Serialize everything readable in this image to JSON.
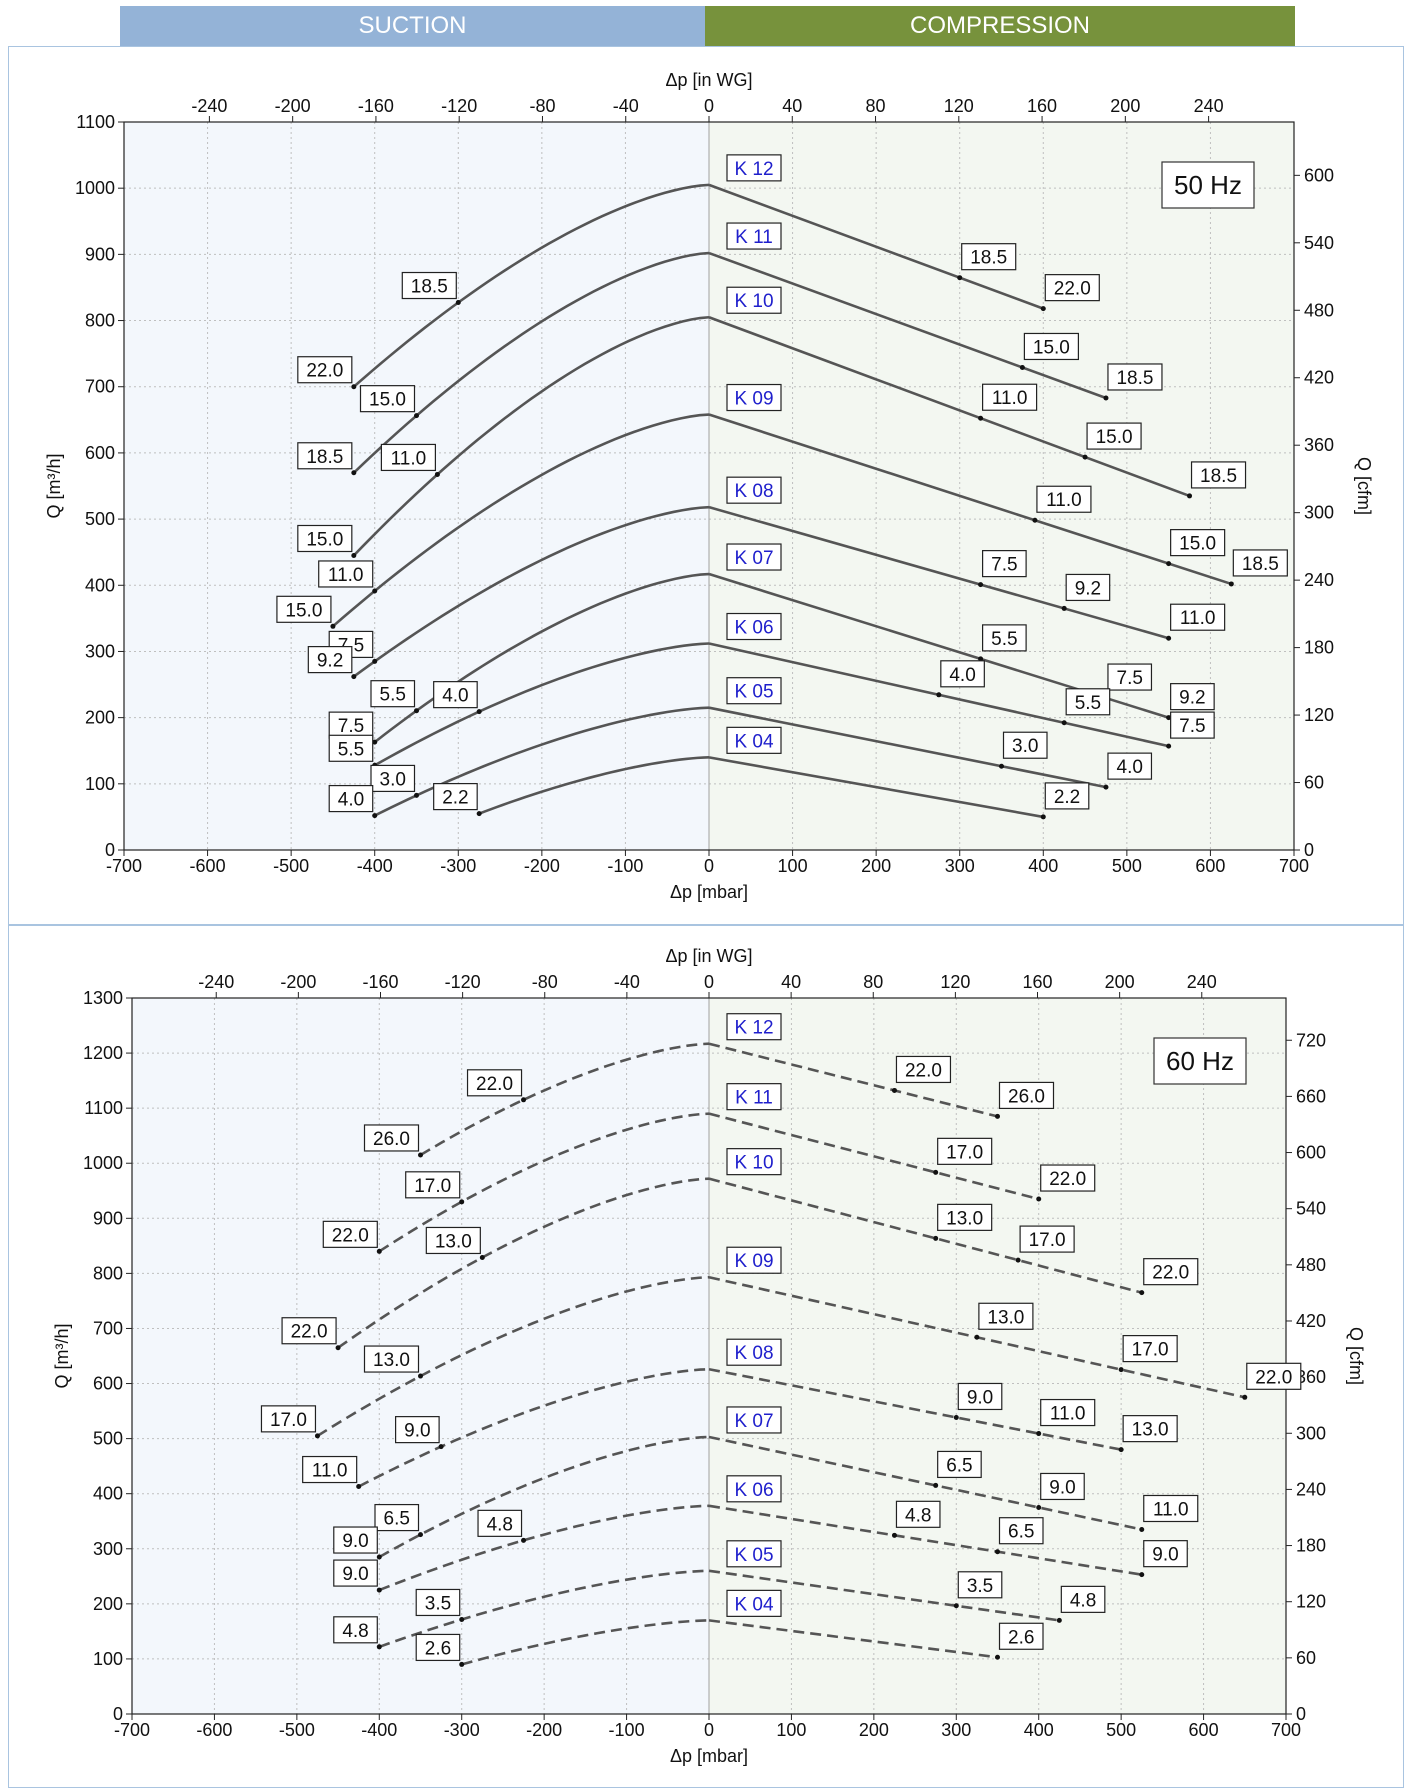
{
  "header": {
    "suction_label": "SUCTION",
    "compression_label": "COMPRESSION"
  },
  "colors": {
    "suction_bg": "#94b3d7",
    "compression_bg": "#77923c",
    "curve": "#555555",
    "curve_label": "#1f1fcc",
    "suction_area": "#f3f7fc",
    "compression_area": "#f3f7f1"
  },
  "chart_data": [
    {
      "type": "line",
      "title": "50 Hz",
      "xlabel": "Δp [mbar]",
      "x2label": "Δp [in WG]",
      "ylabel": "Q [m³/h]",
      "y2label": "Q [cfm]",
      "xlim": [
        -700,
        700
      ],
      "ylim": [
        0,
        1100
      ],
      "x_ticks": [
        "-700",
        "-600",
        "-500",
        "-400",
        "-300",
        "-200",
        "-100",
        "0",
        "100",
        "200",
        "300",
        "400",
        "500",
        "600",
        "700"
      ],
      "y_ticks": [
        "0",
        "100",
        "200",
        "300",
        "400",
        "500",
        "600",
        "700",
        "800",
        "900",
        "1000",
        "1100"
      ],
      "x2_ticks": [
        "-240",
        "-200",
        "-160",
        "-120",
        "-80",
        "-40",
        "0",
        "40",
        "80",
        "120",
        "160",
        "200",
        "240"
      ],
      "y2_ticks": [
        "0",
        "60",
        "120",
        "180",
        "240",
        "300",
        "360",
        "420",
        "480",
        "540",
        "600"
      ],
      "line_style": "solid",
      "grid": true,
      "series": [
        {
          "name": "K 12",
          "peak": 1005,
          "suction": [
            {
              "x": -300,
              "y": 820,
              "label": "18.5"
            },
            {
              "x": -425,
              "y": 700,
              "label": "22.0"
            }
          ],
          "compression": [
            {
              "x": 300,
              "y": 875,
              "label": "18.5"
            },
            {
              "x": 400,
              "y": 818,
              "label": "22.0"
            }
          ]
        },
        {
          "name": "K 11",
          "peak": 902,
          "suction": [
            {
              "x": -350,
              "y": 655,
              "label": "15.0"
            },
            {
              "x": -425,
              "y": 570,
              "label": "18.5"
            }
          ],
          "compression": [
            {
              "x": 375,
              "y": 728,
              "label": "15.0"
            },
            {
              "x": 475,
              "y": 683,
              "label": "18.5"
            }
          ]
        },
        {
          "name": "K 10",
          "peak": 805,
          "suction": [
            {
              "x": -325,
              "y": 582,
              "label": "11.0"
            },
            {
              "x": -425,
              "y": 445,
              "label": "15.0"
            }
          ],
          "compression": [
            {
              "x": 325,
              "y": 652,
              "label": "11.0"
            },
            {
              "x": 450,
              "y": 593,
              "label": "15.0"
            },
            {
              "x": 575,
              "y": 535,
              "label": "18.5"
            }
          ]
        },
        {
          "name": "K 09",
          "peak": 658,
          "suction": [
            {
              "x": -400,
              "y": 400,
              "label": "11.0"
            },
            {
              "x": -450,
              "y": 338,
              "label": "15.0"
            }
          ],
          "compression": [
            {
              "x": 390,
              "y": 498,
              "label": "11.0"
            },
            {
              "x": 550,
              "y": 433,
              "label": "15.0"
            },
            {
              "x": 625,
              "y": 402,
              "label": "18.5"
            }
          ]
        },
        {
          "name": "K 08",
          "peak": 518,
          "suction": [
            {
              "x": -400,
              "y": 338,
              "label": "7.5"
            },
            {
              "x": -425,
              "y": 262,
              "label": "9.2"
            }
          ],
          "compression": [
            {
              "x": 325,
              "y": 400,
              "label": "7.5"
            },
            {
              "x": 425,
              "y": 366,
              "label": "9.2"
            },
            {
              "x": 550,
              "y": 320,
              "label": "11.0"
            }
          ]
        },
        {
          "name": "K 07",
          "peak": 417,
          "suction": [
            {
              "x": -350,
              "y": 215,
              "label": "5.5"
            },
            {
              "x": -400,
              "y": 163,
              "label": "7.5"
            }
          ],
          "compression": [
            {
              "x": 325,
              "y": 307,
              "label": "5.5"
            },
            {
              "x": 475,
              "y": 235,
              "label": "7.5"
            },
            {
              "x": 550,
              "y": 200,
              "label": "9.2"
            }
          ]
        },
        {
          "name": "K 06",
          "peak": 312,
          "suction": [
            {
              "x": -275,
              "y": 205,
              "label": "4.0"
            },
            {
              "x": -400,
              "y": 128,
              "label": "5.5"
            }
          ],
          "compression": [
            {
              "x": 275,
              "y": 237,
              "label": "4.0"
            },
            {
              "x": 425,
              "y": 192,
              "label": "5.5"
            },
            {
              "x": 550,
              "y": 157,
              "label": "7.5"
            }
          ]
        },
        {
          "name": "K 05",
          "peak": 215,
          "suction": [
            {
              "x": -350,
              "y": 100,
              "label": "3.0"
            },
            {
              "x": -400,
              "y": 52,
              "label": "4.0"
            }
          ],
          "compression": [
            {
              "x": 350,
              "y": 127,
              "label": "3.0"
            },
            {
              "x": 475,
              "y": 95,
              "label": "4.0"
            }
          ]
        },
        {
          "name": "K 04",
          "peak": 140,
          "suction": [
            {
              "x": -275,
              "y": 55,
              "label": "2.2"
            }
          ],
          "compression": [
            {
              "x": 400,
              "y": 50,
              "label": "2.2"
            }
          ]
        }
      ]
    },
    {
      "type": "line",
      "title": "60 Hz",
      "xlabel": "Δp [mbar]",
      "x2label": "Δp [in WG]",
      "ylabel": "Q [m³/h]",
      "y2label": "Q [cfm]",
      "xlim": [
        -700,
        700
      ],
      "ylim": [
        0,
        1300
      ],
      "x_ticks": [
        "-700",
        "-600",
        "-500",
        "-400",
        "-300",
        "-200",
        "-100",
        "0",
        "100",
        "200",
        "300",
        "400",
        "500",
        "600",
        "700"
      ],
      "y_ticks": [
        "0",
        "100",
        "200",
        "300",
        "400",
        "500",
        "600",
        "700",
        "800",
        "900",
        "1000",
        "1100",
        "1200",
        "1300"
      ],
      "x2_ticks": [
        "-240",
        "-200",
        "-160",
        "-120",
        "-80",
        "-40",
        "0",
        "40",
        "80",
        "120",
        "160",
        "200",
        "240"
      ],
      "y2_ticks": [
        "0",
        "60",
        "120",
        "180",
        "240",
        "300",
        "360",
        "420",
        "480",
        "540",
        "600",
        "660",
        "720"
      ],
      "line_style": "dashed",
      "grid": true,
      "series": [
        {
          "name": "K 12",
          "peak": 1217,
          "suction": [
            {
              "x": -225,
              "y": 1110,
              "label": "22.0"
            },
            {
              "x": -350,
              "y": 1015,
              "label": "26.0"
            }
          ],
          "compression": [
            {
              "x": 225,
              "y": 1135,
              "label": "22.0"
            },
            {
              "x": 350,
              "y": 1085,
              "label": "26.0"
            }
          ]
        },
        {
          "name": "K 11",
          "peak": 1090,
          "suction": [
            {
              "x": -300,
              "y": 945,
              "label": "17.0"
            },
            {
              "x": -400,
              "y": 840,
              "label": "22.0"
            }
          ],
          "compression": [
            {
              "x": 275,
              "y": 982,
              "label": "17.0"
            },
            {
              "x": 400,
              "y": 935,
              "label": "22.0"
            }
          ]
        },
        {
          "name": "K 10",
          "peak": 972,
          "suction": [
            {
              "x": -275,
              "y": 828,
              "label": "13.0"
            },
            {
              "x": -450,
              "y": 665,
              "label": "22.0"
            }
          ],
          "compression": [
            {
              "x": 275,
              "y": 865,
              "label": "13.0"
            },
            {
              "x": 375,
              "y": 825,
              "label": "17.0"
            },
            {
              "x": 525,
              "y": 765,
              "label": "22.0"
            }
          ]
        },
        {
          "name": "K 09",
          "peak": 793,
          "suction": [
            {
              "x": -350,
              "y": 640,
              "label": "13.0"
            },
            {
              "x": -475,
              "y": 505,
              "label": "17.0"
            }
          ],
          "compression": [
            {
              "x": 325,
              "y": 690,
              "label": "13.0"
            },
            {
              "x": 500,
              "y": 625,
              "label": "17.0"
            },
            {
              "x": 650,
              "y": 575,
              "label": "22.0"
            }
          ]
        },
        {
          "name": "K 08",
          "peak": 626,
          "suction": [
            {
              "x": -325,
              "y": 485,
              "label": "9.0"
            },
            {
              "x": -425,
              "y": 413,
              "label": "11.0"
            }
          ],
          "compression": [
            {
              "x": 300,
              "y": 540,
              "label": "9.0"
            },
            {
              "x": 400,
              "y": 510,
              "label": "11.0"
            },
            {
              "x": 500,
              "y": 480,
              "label": "13.0"
            }
          ]
        },
        {
          "name": "K 07",
          "peak": 503,
          "suction": [
            {
              "x": -350,
              "y": 350,
              "label": "6.5"
            },
            {
              "x": -400,
              "y": 285,
              "label": "9.0"
            }
          ],
          "compression": [
            {
              "x": 275,
              "y": 420,
              "label": "6.5"
            },
            {
              "x": 400,
              "y": 375,
              "label": "9.0"
            },
            {
              "x": 525,
              "y": 335,
              "label": "11.0"
            }
          ]
        },
        {
          "name": "K 06",
          "peak": 378,
          "suction": [
            {
              "x": -225,
              "y": 310,
              "label": "4.8"
            },
            {
              "x": -400,
              "y": 225,
              "label": "9.0"
            }
          ],
          "compression": [
            {
              "x": 225,
              "y": 325,
              "label": "4.8"
            },
            {
              "x": 350,
              "y": 292,
              "label": "6.5"
            },
            {
              "x": 525,
              "y": 253,
              "label": "9.0"
            }
          ]
        },
        {
          "name": "K 05",
          "peak": 260,
          "suction": [
            {
              "x": -300,
              "y": 170,
              "label": "3.5"
            },
            {
              "x": -400,
              "y": 122,
              "label": "4.8"
            }
          ],
          "compression": [
            {
              "x": 300,
              "y": 200,
              "label": "3.5"
            },
            {
              "x": 425,
              "y": 170,
              "label": "4.8"
            }
          ]
        },
        {
          "name": "K 04",
          "peak": 170,
          "suction": [
            {
              "x": -300,
              "y": 90,
              "label": "2.6"
            }
          ],
          "compression": [
            {
              "x": 350,
              "y": 103,
              "label": "2.6"
            }
          ]
        }
      ]
    }
  ]
}
